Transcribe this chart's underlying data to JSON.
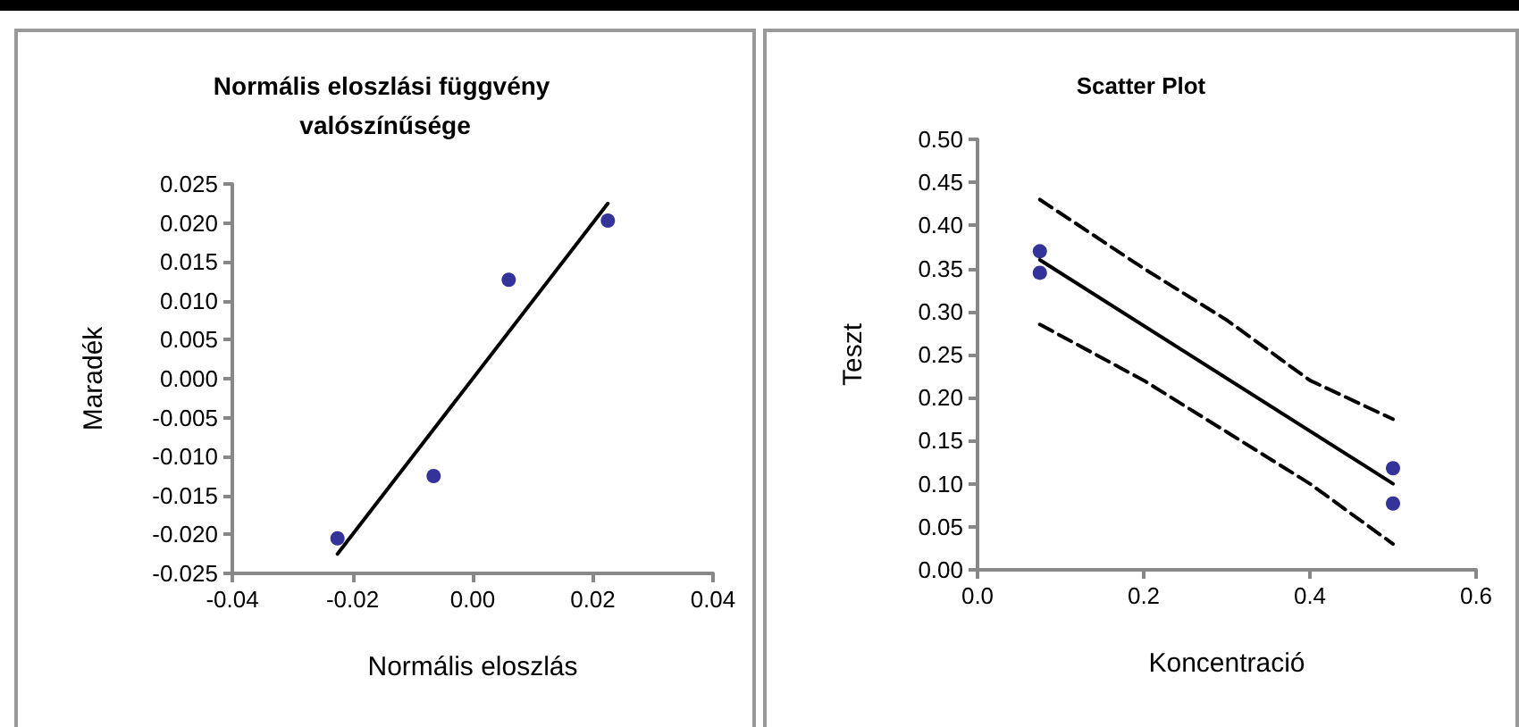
{
  "chart_data": [
    {
      "type": "scatter",
      "title": "Normális eloszlási függvény valószínűsége",
      "xlabel": "Normális eloszlás",
      "ylabel": "Maradék",
      "xlim": [
        -0.04,
        0.04
      ],
      "xticks": [
        -0.04,
        -0.02,
        {
          "value": 0,
          "label": "0.00"
        },
        0.02,
        0.04
      ],
      "ylim": [
        -0.025,
        0.025
      ],
      "yticks": [
        {
          "value": -0.025,
          "label": "-0.025"
        },
        {
          "value": -0.02,
          "label": "-0.020"
        },
        {
          "value": -0.015,
          "label": "-0.015"
        },
        {
          "value": -0.01,
          "label": "-0.010"
        },
        {
          "value": -0.005,
          "label": "-0.005"
        },
        {
          "value": 0,
          "label": "0.000"
        },
        {
          "value": 0.005,
          "label": "0.005"
        },
        {
          "value": 0.01,
          "label": "0.010"
        },
        {
          "value": 0.015,
          "label": "0.015"
        },
        {
          "value": 0.02,
          "label": "0.020"
        },
        {
          "value": 0.025,
          "label": "0.025"
        }
      ],
      "marker": "circle",
      "series": [
        {
          "color": "#000080",
          "x": [
            -0.0225,
            -0.0065,
            0.006,
            0.0225
          ],
          "values": [
            -0.0205,
            -0.0125,
            0.0127,
            0.0203
          ]
        },
        {
          "type": "line",
          "color": "#000000",
          "marker": "none",
          "line_style": "solid",
          "x": [
            -0.0225,
            0.0225
          ],
          "values": [
            -0.0225,
            0.0225
          ]
        }
      ]
    },
    {
      "type": "scatter",
      "title": "Scatter Plot",
      "xlabel": "Koncentració",
      "ylabel": "Teszt",
      "xlim": [
        0,
        0.6
      ],
      "xticks": [
        {
          "value": 0,
          "label": "0.0"
        },
        0.2,
        0.4,
        0.6
      ],
      "ylim": [
        0,
        0.5
      ],
      "yticks": [
        {
          "value": 0,
          "label": "0.00"
        },
        0.05,
        {
          "value": 0.1,
          "label": "0.10"
        },
        0.15,
        {
          "value": 0.2,
          "label": "0.20"
        },
        0.25,
        {
          "value": 0.3,
          "label": "0.30"
        },
        0.35,
        {
          "value": 0.4,
          "label": "0.40"
        },
        0.45,
        {
          "value": 0.5,
          "label": "0.50"
        }
      ],
      "marker": "circle",
      "series": [
        {
          "color": "#000080",
          "x": [
            0.075,
            0.075,
            0.5,
            0.5
          ],
          "values": [
            0.37,
            0.345,
            0.118,
            0.077
          ]
        },
        {
          "type": "line",
          "color": "#000000",
          "marker": "none",
          "line_style": "solid",
          "x": [
            0.075,
            0.5
          ],
          "values": [
            0.36,
            0.1
          ]
        },
        {
          "type": "line",
          "color": "#000000",
          "marker": "none",
          "line_style": "dashed",
          "x": [
            0.075,
            0.2,
            0.3,
            0.4,
            0.5
          ],
          "values": [
            0.43,
            0.35,
            0.29,
            0.22,
            0.175
          ]
        },
        {
          "type": "line",
          "color": "#000000",
          "marker": "none",
          "line_style": "dashed",
          "x": [
            0.075,
            0.2,
            0.3,
            0.4,
            0.5
          ],
          "values": [
            0.285,
            0.22,
            0.16,
            0.1,
            0.03
          ]
        }
      ]
    }
  ]
}
